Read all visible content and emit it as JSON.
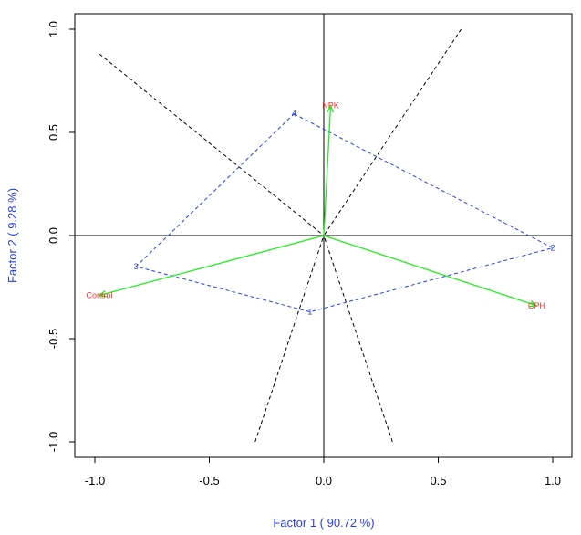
{
  "chart_data": {
    "type": "biplot",
    "xlabel": "Factor 1 ( 90.72 %)",
    "ylabel": "Factor 2 ( 9.28 %)",
    "xlim": [
      -1.1,
      1.1
    ],
    "ylim": [
      -1.1,
      1.1
    ],
    "x_ticks": [
      -1.0,
      -0.5,
      0.0,
      0.5,
      1.0
    ],
    "y_ticks": [
      -1.0,
      -0.5,
      0.0,
      0.5,
      1.0
    ],
    "x_tick_labels": [
      "-1.0",
      "-0.5",
      "0.0",
      "0.5",
      "1.0"
    ],
    "y_tick_labels": [
      "-1.0",
      "-0.5",
      "0.0",
      "0.5",
      "1.0"
    ],
    "vectors": [
      {
        "label": "NPK",
        "x": 0.03,
        "y": 0.63
      },
      {
        "label": "CPH",
        "x": 0.93,
        "y": -0.34
      },
      {
        "label": "Control",
        "x": -0.98,
        "y": -0.29
      }
    ],
    "polygon": [
      {
        "label": "4",
        "x": -0.13,
        "y": 0.59
      },
      {
        "label": "2",
        "x": 1.0,
        "y": -0.06
      },
      {
        "label": "1",
        "x": -0.06,
        "y": -0.37
      },
      {
        "label": "3",
        "x": -0.82,
        "y": -0.15
      }
    ],
    "dashed_lines": [
      {
        "from": [
          -0.98,
          0.88
        ],
        "to": [
          0.0,
          0.0
        ]
      },
      {
        "from": [
          0.6,
          1.0
        ],
        "to": [
          0.0,
          0.0
        ]
      },
      {
        "from": [
          -0.3,
          -1.0
        ],
        "to": [
          0.0,
          0.0
        ]
      },
      {
        "from": [
          0.3,
          -1.0
        ],
        "to": [
          0.0,
          0.0
        ]
      }
    ],
    "colors": {
      "vector": "#22ee22",
      "vector_label": "#ff3333",
      "polygon": "#2a3fe6",
      "polygon_label": "#2a3fe6",
      "dashed": "#000000",
      "axis_title": "#2a3fe6",
      "frame": "#000000"
    }
  }
}
